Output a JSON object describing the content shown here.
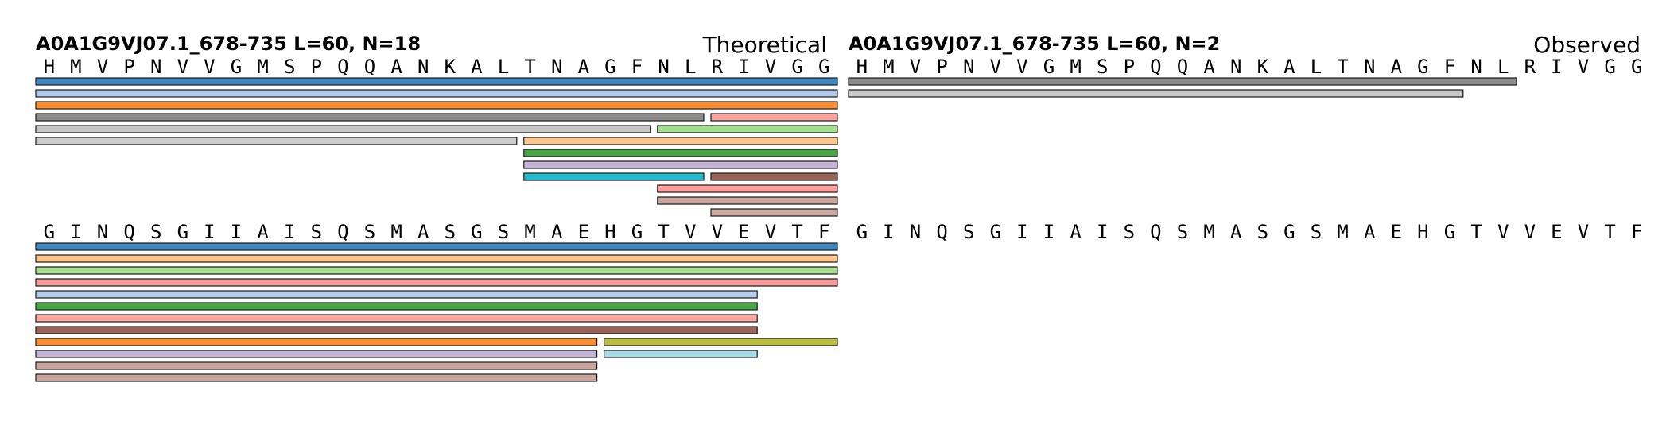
{
  "panels": [
    {
      "id": "theoretical",
      "title": "A0A1G9VJ07.1_678-735  L=60, N=18",
      "label": "Theoretical",
      "rows": [
        {
          "sequence": "HMVPNVVGMSPQQANKALTNAGFNLRIVGG",
          "peptides": [
            {
              "start": 1,
              "end": 30,
              "lane": 0,
              "color": "#3f86bd"
            },
            {
              "start": 1,
              "end": 30,
              "lane": 1,
              "color": "#b3c9ea"
            },
            {
              "start": 1,
              "end": 30,
              "lane": 2,
              "color": "#ff8c2e"
            },
            {
              "start": 1,
              "end": 25,
              "lane": 3,
              "color": "#8c8c8c"
            },
            {
              "start": 26,
              "end": 30,
              "lane": 3,
              "color": "#ffa39e"
            },
            {
              "start": 1,
              "end": 23,
              "lane": 4,
              "color": "#c7c7c7"
            },
            {
              "start": 24,
              "end": 30,
              "lane": 4,
              "color": "#9fe08a"
            },
            {
              "start": 1,
              "end": 18,
              "lane": 5,
              "color": "#cdcdcd"
            },
            {
              "start": 19,
              "end": 30,
              "lane": 5,
              "color": "#ffc68c"
            },
            {
              "start": 19,
              "end": 30,
              "lane": 6,
              "color": "#45a845"
            },
            {
              "start": 19,
              "end": 30,
              "lane": 7,
              "color": "#c6b3d8"
            },
            {
              "start": 19,
              "end": 25,
              "lane": 8,
              "color": "#22bcd2"
            },
            {
              "start": 26,
              "end": 30,
              "lane": 8,
              "color": "#9a6357"
            },
            {
              "start": 24,
              "end": 30,
              "lane": 9,
              "color": "#ff9e9a"
            },
            {
              "start": 24,
              "end": 30,
              "lane": 10,
              "color": "#c9a59e"
            },
            {
              "start": 26,
              "end": 30,
              "lane": 11,
              "color": "#c9a9a3"
            }
          ]
        },
        {
          "sequence": "GINQSGIIAISQSMASGSMAEHGTVVEVTF",
          "peptides": [
            {
              "start": 1,
              "end": 30,
              "lane": 0,
              "color": "#3f86bd"
            },
            {
              "start": 1,
              "end": 30,
              "lane": 1,
              "color": "#ffc68c"
            },
            {
              "start": 1,
              "end": 30,
              "lane": 2,
              "color": "#a6df8f"
            },
            {
              "start": 1,
              "end": 30,
              "lane": 3,
              "color": "#f59a98"
            },
            {
              "start": 1,
              "end": 27,
              "lane": 4,
              "color": "#b5cbea"
            },
            {
              "start": 1,
              "end": 27,
              "lane": 5,
              "color": "#45a845"
            },
            {
              "start": 1,
              "end": 27,
              "lane": 6,
              "color": "#ffa9a3"
            },
            {
              "start": 1,
              "end": 27,
              "lane": 7,
              "color": "#9a6357"
            },
            {
              "start": 1,
              "end": 21,
              "lane": 8,
              "color": "#ff8c2e"
            },
            {
              "start": 22,
              "end": 30,
              "lane": 8,
              "color": "#bcbd3a"
            },
            {
              "start": 1,
              "end": 21,
              "lane": 9,
              "color": "#c6b3d8"
            },
            {
              "start": 22,
              "end": 27,
              "lane": 9,
              "color": "#a5dce6"
            },
            {
              "start": 1,
              "end": 21,
              "lane": 10,
              "color": "#c9a59e"
            },
            {
              "start": 1,
              "end": 21,
              "lane": 11,
              "color": "#c9a59e"
            }
          ]
        }
      ]
    },
    {
      "id": "observed",
      "title": "A0A1G9VJ07.1_678-735  L=60, N=2",
      "label": "Observed",
      "rows": [
        {
          "sequence": "HMVPNVVGMSPQQANKALTNAGFNLRIVGG",
          "peptides": [
            {
              "start": 1,
              "end": 25,
              "lane": 0,
              "color": "#8c8c8c"
            },
            {
              "start": 1,
              "end": 23,
              "lane": 1,
              "color": "#c9c9c9"
            }
          ]
        },
        {
          "sequence": "GINQSGIIAISQSMASGSMAEHGTVVEVTF",
          "peptides": []
        }
      ]
    }
  ]
}
